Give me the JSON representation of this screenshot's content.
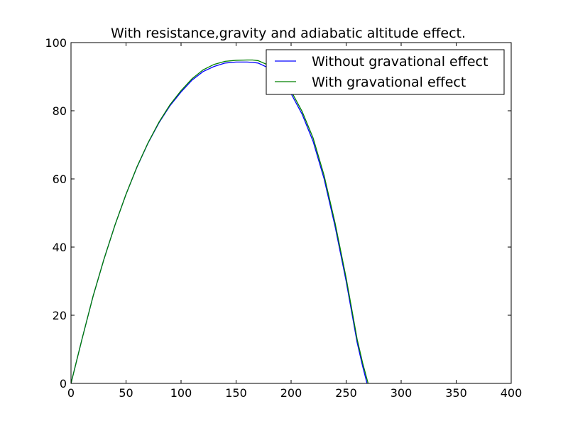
{
  "chart_data": {
    "type": "line",
    "title": "With resistance,gravity and adiabatic altitude effect.",
    "xlabel": "",
    "ylabel": "",
    "xlim": [
      0,
      400
    ],
    "ylim": [
      0,
      100
    ],
    "x_ticks": [
      0,
      50,
      100,
      150,
      200,
      250,
      300,
      350,
      400
    ],
    "y_ticks": [
      0,
      20,
      40,
      60,
      80,
      100
    ],
    "grid": false,
    "legend_position": "top-right",
    "series": [
      {
        "name": "Without gravational effect",
        "color": "#0000ff",
        "x": [
          0,
          10,
          20,
          30,
          40,
          50,
          60,
          70,
          80,
          90,
          100,
          110,
          120,
          130,
          140,
          150,
          160,
          165,
          170,
          180,
          190,
          200,
          210,
          220,
          230,
          240,
          250,
          255,
          260,
          265,
          269
        ],
        "y": [
          0,
          13,
          25.5,
          36.5,
          46.5,
          55.5,
          63.5,
          70.5,
          76.5,
          81.5,
          85.5,
          89,
          91.5,
          93,
          94,
          94.3,
          94.3,
          94.2,
          94,
          92.5,
          89.5,
          85,
          79,
          71,
          60,
          46,
          30,
          21,
          12,
          5,
          0
        ]
      },
      {
        "name": "With gravational effect",
        "color": "#008000",
        "x": [
          0,
          10,
          20,
          30,
          40,
          50,
          60,
          70,
          80,
          90,
          100,
          110,
          120,
          130,
          140,
          150,
          160,
          165,
          170,
          180,
          190,
          200,
          210,
          220,
          230,
          240,
          250,
          255,
          260,
          265,
          270
        ],
        "y": [
          0,
          13,
          25.5,
          36.5,
          46.5,
          55.5,
          63.6,
          70.6,
          76.7,
          81.8,
          85.9,
          89.4,
          92,
          93.6,
          94.5,
          94.8,
          94.9,
          94.9,
          94.7,
          93.3,
          90.3,
          85.8,
          79.8,
          72,
          61,
          47,
          31,
          22,
          13,
          6,
          0
        ]
      }
    ]
  }
}
